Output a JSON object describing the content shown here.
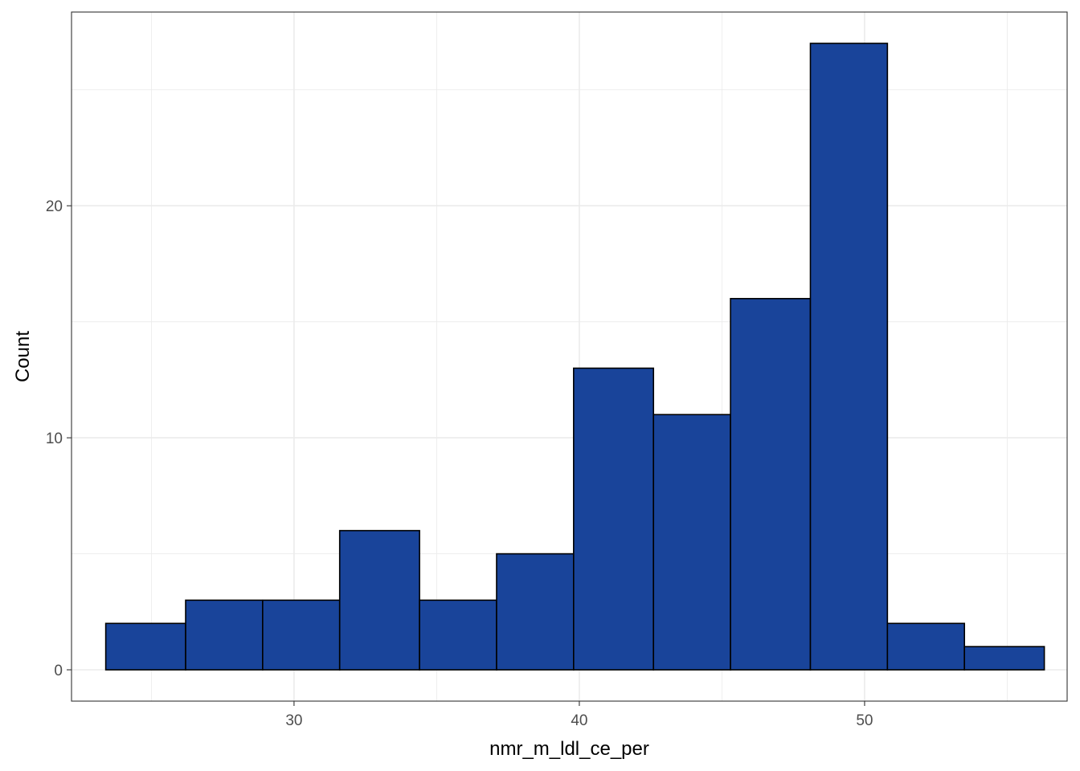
{
  "chart_data": {
    "type": "bar",
    "subtype": "histogram",
    "xlabel": "nmr_m_ldl_ce_per",
    "ylabel": "Count",
    "x_ticks": [
      30,
      40,
      50
    ],
    "y_ticks": [
      0,
      10,
      20
    ],
    "xlim": [
      22.2,
      57.1
    ],
    "ylim": [
      -1.35,
      28.35
    ],
    "grid": true,
    "bins": [
      {
        "x0": 23.4,
        "x1": 26.2,
        "count": 2
      },
      {
        "x0": 26.2,
        "x1": 28.9,
        "count": 3
      },
      {
        "x0": 28.9,
        "x1": 31.6,
        "count": 3
      },
      {
        "x0": 31.6,
        "x1": 34.4,
        "count": 6
      },
      {
        "x0": 34.4,
        "x1": 37.1,
        "count": 3
      },
      {
        "x0": 37.1,
        "x1": 39.8,
        "count": 5
      },
      {
        "x0": 39.8,
        "x1": 42.6,
        "count": 13
      },
      {
        "x0": 42.6,
        "x1": 45.3,
        "count": 11
      },
      {
        "x0": 45.3,
        "x1": 48.1,
        "count": 16
      },
      {
        "x0": 48.1,
        "x1": 50.8,
        "count": 27
      },
      {
        "x0": 50.8,
        "x1": 53.5,
        "count": 2
      },
      {
        "x0": 53.5,
        "x1": 56.3,
        "count": 1
      }
    ],
    "colors": {
      "bar_fill": "#19449A",
      "bar_stroke": "#000000",
      "grid": "#EBEBEB",
      "panel_border": "#333333"
    }
  }
}
